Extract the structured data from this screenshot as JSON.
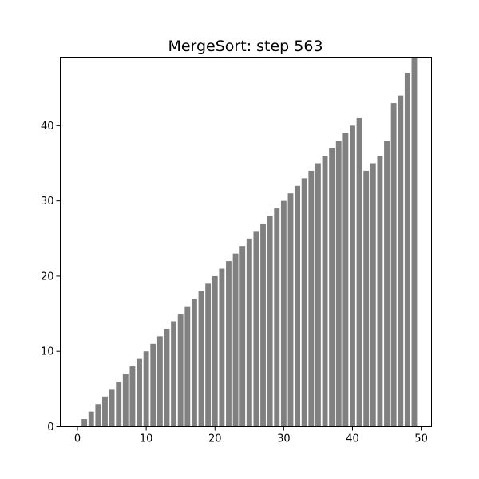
{
  "chart_data": {
    "type": "bar",
    "title": "MergeSort: step 563",
    "xlabel": "",
    "ylabel": "",
    "x": [
      0,
      1,
      2,
      3,
      4,
      5,
      6,
      7,
      8,
      9,
      10,
      11,
      12,
      13,
      14,
      15,
      16,
      17,
      18,
      19,
      20,
      21,
      22,
      23,
      24,
      25,
      26,
      27,
      28,
      29,
      30,
      31,
      32,
      33,
      34,
      35,
      36,
      37,
      38,
      39,
      40,
      41,
      42,
      43,
      44,
      45,
      46,
      47,
      48,
      49
    ],
    "values": [
      0,
      1,
      2,
      3,
      4,
      5,
      6,
      7,
      8,
      9,
      10,
      11,
      12,
      13,
      14,
      15,
      16,
      17,
      18,
      19,
      20,
      21,
      22,
      23,
      24,
      25,
      26,
      27,
      28,
      29,
      30,
      31,
      32,
      33,
      34,
      35,
      36,
      37,
      38,
      39,
      40,
      41,
      34,
      35,
      36,
      38,
      43,
      44,
      47,
      49
    ],
    "xlim": [
      -2.5,
      51.5
    ],
    "ylim": [
      0,
      49
    ],
    "xticks": [
      0,
      10,
      20,
      30,
      40,
      50
    ],
    "yticks": [
      0,
      10,
      20,
      30,
      40
    ],
    "bar_color": "#808080",
    "grid": false,
    "legend": "none"
  }
}
